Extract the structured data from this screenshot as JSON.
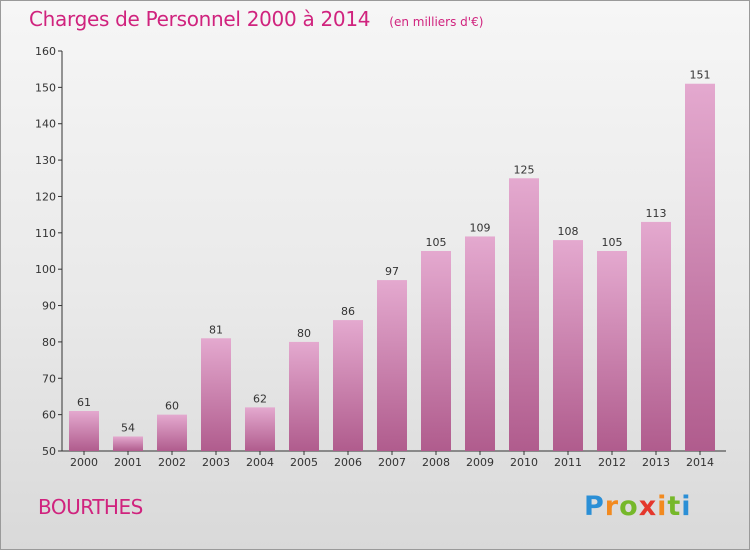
{
  "header": {
    "title": "Charges de Personnel 2000 à 2014",
    "subtitle": "(en milliers d'€)"
  },
  "commune": "BOURTHES",
  "logo": {
    "text": "Proxiti"
  },
  "colors": {
    "accent": "#d0237e",
    "bar_top": "#e4a9cf",
    "bar_bottom": "#b05c8d"
  },
  "chart_data": {
    "type": "bar",
    "title": "Charges de Personnel 2000 à 2014",
    "subtitle": "(en milliers d'€)",
    "xlabel": "",
    "ylabel": "",
    "categories": [
      "2000",
      "2001",
      "2002",
      "2003",
      "2004",
      "2005",
      "2006",
      "2007",
      "2008",
      "2009",
      "2010",
      "2011",
      "2012",
      "2013",
      "2014"
    ],
    "values": [
      61,
      54,
      60,
      81,
      62,
      80,
      86,
      97,
      105,
      109,
      125,
      108,
      105,
      113,
      151
    ],
    "ylim": [
      50,
      160
    ],
    "yticks": [
      50,
      60,
      70,
      80,
      90,
      100,
      110,
      120,
      130,
      140,
      150,
      160
    ],
    "grid": false,
    "legend": "none"
  }
}
